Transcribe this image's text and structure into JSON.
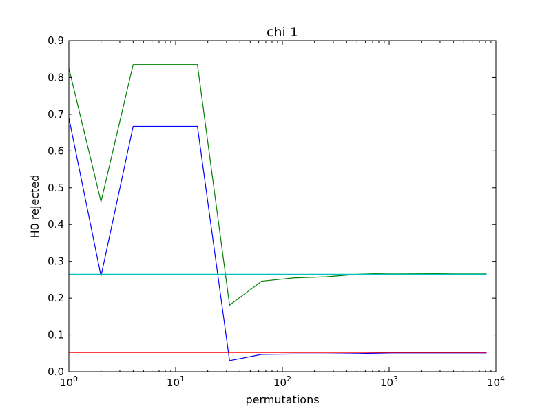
{
  "chart_data": {
    "type": "line",
    "title": "chi 1",
    "xlabel": "permutations",
    "ylabel": "H0 rejected",
    "xscale": "log",
    "xlim": [
      1,
      10000
    ],
    "ylim": [
      0,
      0.9
    ],
    "grid": false,
    "legend": "none",
    "xticks": [
      {
        "value": 1,
        "base": "10",
        "exp": "0"
      },
      {
        "value": 10,
        "base": "10",
        "exp": "1"
      },
      {
        "value": 100,
        "base": "10",
        "exp": "2"
      },
      {
        "value": 1000,
        "base": "10",
        "exp": "3"
      },
      {
        "value": 10000,
        "base": "10",
        "exp": "4"
      }
    ],
    "yticks": [
      "0.0",
      "0.1",
      "0.2",
      "0.3",
      "0.4",
      "0.5",
      "0.6",
      "0.7",
      "0.8",
      "0.9"
    ],
    "series": [
      {
        "color": "#008000",
        "x": [
          1,
          2,
          4,
          8,
          16,
          32,
          64,
          128,
          256,
          512,
          1024,
          2048,
          4096,
          8192
        ],
        "y": [
          0.825,
          0.462,
          0.835,
          0.835,
          0.835,
          0.181,
          0.246,
          0.255,
          0.258,
          0.265,
          0.268,
          0.267,
          0.266,
          0.266
        ]
      },
      {
        "color": "#0000ff",
        "x": [
          1,
          2,
          4,
          8,
          16,
          32,
          64,
          128,
          256,
          512,
          1024,
          2048,
          4096,
          8192
        ],
        "y": [
          0.69,
          0.26,
          0.667,
          0.667,
          0.667,
          0.03,
          0.047,
          0.048,
          0.048,
          0.049,
          0.051,
          0.051,
          0.051,
          0.051
        ]
      },
      {
        "color": "#00bfbf",
        "x": [
          1,
          8192
        ],
        "y": [
          0.265,
          0.265
        ]
      },
      {
        "color": "#ff0000",
        "x": [
          1,
          8192
        ],
        "y": [
          0.052,
          0.052
        ]
      }
    ]
  }
}
